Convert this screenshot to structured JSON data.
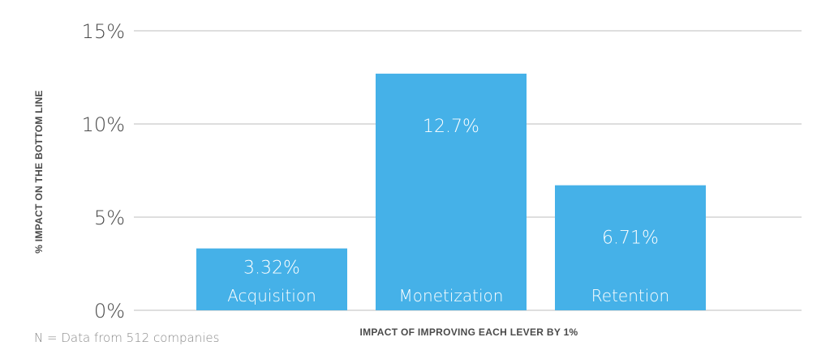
{
  "chart_data": {
    "type": "bar",
    "categories": [
      "Acquisition",
      "Monetization",
      "Retention"
    ],
    "values": [
      3.32,
      12.7,
      6.71
    ],
    "value_labels": [
      "3.32%",
      "12.7%",
      "6.71%"
    ],
    "xlabel": "IMPACT OF IMPROVING EACH LEVER BY 1%",
    "ylabel": "% IMPACT ON THE BOTTOM LINE",
    "ylim": [
      0,
      15
    ],
    "yticks": [
      0,
      5,
      10,
      15
    ],
    "ytick_labels": [
      "0%",
      "5%",
      "10%",
      "15%"
    ],
    "grid": true,
    "bar_color": "#45b1e8"
  },
  "footnote": "N = Data from 512 companies"
}
